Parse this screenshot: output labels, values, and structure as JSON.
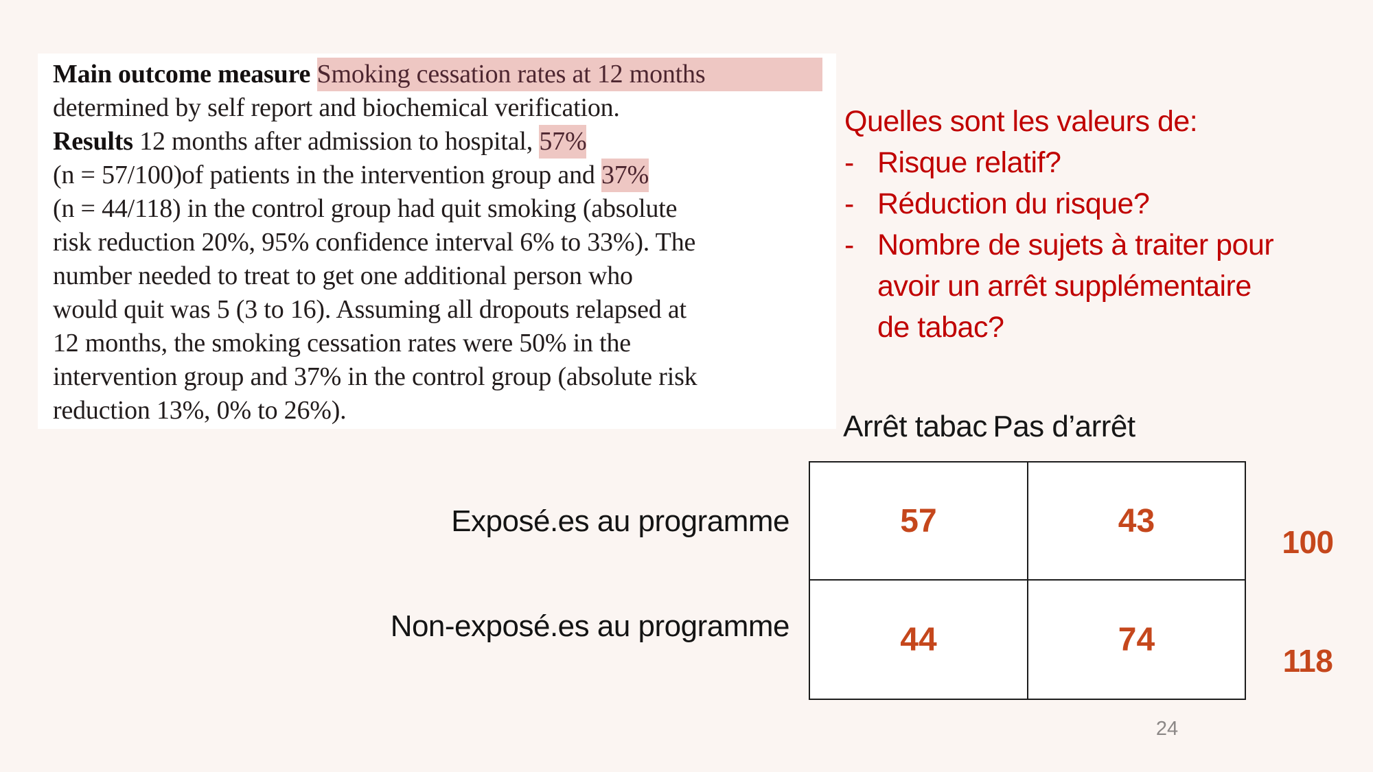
{
  "slide": {
    "page_number": "24",
    "background_color": "#fbf5f2"
  },
  "colors": {
    "question_red": "#c00000",
    "highlight_pink": "#eec7c3",
    "table_value_orange": "#c5471c",
    "page_number_gray": "#8b8786"
  },
  "paper": {
    "lines": [
      {
        "segments": [
          {
            "text": "Main outcome measure ",
            "style": "bold"
          },
          {
            "text": "Smoking cessation rates at 12 months",
            "style": "highlight-full"
          }
        ]
      },
      {
        "segments": [
          {
            "text": "determined by self report and biochemical verification.",
            "style": "plain"
          }
        ]
      },
      {
        "segments": [
          {
            "text": "Results ",
            "style": "bold"
          },
          {
            "text": "12 months after admission to hospital, ",
            "style": "plain"
          },
          {
            "text": "57%",
            "style": "highlight"
          }
        ]
      },
      {
        "segments": [
          {
            "text": "(n = 57/100)of patients in the intervention group and ",
            "style": "plain"
          },
          {
            "text": "37%",
            "style": "highlight"
          }
        ]
      },
      {
        "segments": [
          {
            "text": "(n = 44/118) in the control group had quit smoking (absolute",
            "style": "plain"
          }
        ]
      },
      {
        "segments": [
          {
            "text": "risk reduction 20%, 95% confidence interval 6% to 33%). The",
            "style": "plain"
          }
        ]
      },
      {
        "segments": [
          {
            "text": "number needed to treat to get one additional person who",
            "style": "plain"
          }
        ]
      },
      {
        "segments": [
          {
            "text": "would quit was 5 (3 to 16). Assuming all dropouts relapsed at",
            "style": "plain"
          }
        ]
      },
      {
        "segments": [
          {
            "text": "12 months, the smoking cessation rates were 50% in the",
            "style": "plain"
          }
        ]
      },
      {
        "segments": [
          {
            "text": "intervention group and 37% in the control group (absolute risk",
            "style": "plain"
          }
        ]
      },
      {
        "segments": [
          {
            "text": "reduction 13%, 0% to 26%).",
            "style": "plain"
          }
        ]
      }
    ]
  },
  "questions": {
    "intro": "Quelles sont les valeurs de:",
    "bullet_marker": "-",
    "items": [
      {
        "lines": [
          "Risque relatif?"
        ]
      },
      {
        "lines": [
          "Réduction du risque?"
        ]
      },
      {
        "lines": [
          "Nombre de sujets à traiter pour",
          "avoir un arrêt supplémentaire",
          "de tabac?"
        ]
      }
    ]
  },
  "table": {
    "column_headers": [
      "Arrêt tabac",
      "Pas d’arrêt"
    ],
    "row_labels": [
      "Exposé.es au programme",
      "Non-exposé.es au programme"
    ],
    "cells": [
      [
        "57",
        "43"
      ],
      [
        "44",
        "74"
      ]
    ],
    "row_totals": [
      "100",
      "118"
    ]
  }
}
